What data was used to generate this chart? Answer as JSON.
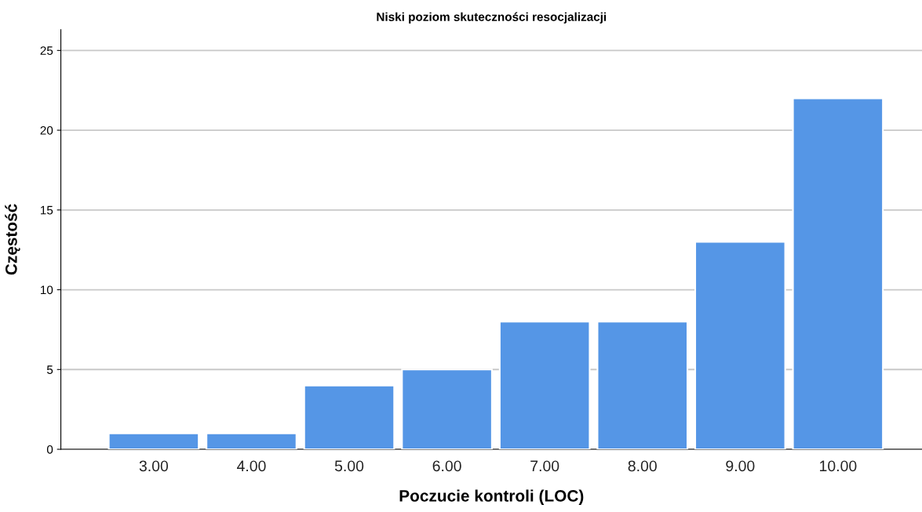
{
  "chart_data": {
    "type": "bar",
    "title": "Niski poziom skuteczności resocjalizacji",
    "xlabel": "Poczucie kontroli (LOC)",
    "ylabel": "Częstość",
    "categories": [
      "3.00",
      "4.00",
      "5.00",
      "6.00",
      "7.00",
      "8.00",
      "9.00",
      "10.00"
    ],
    "values": [
      1,
      1,
      4,
      5,
      8,
      8,
      13,
      22
    ],
    "color": "#5596e6",
    "ylim": [
      0,
      26.3
    ],
    "yticks": [
      0,
      5,
      10,
      15,
      20,
      25
    ],
    "grid": "y"
  }
}
